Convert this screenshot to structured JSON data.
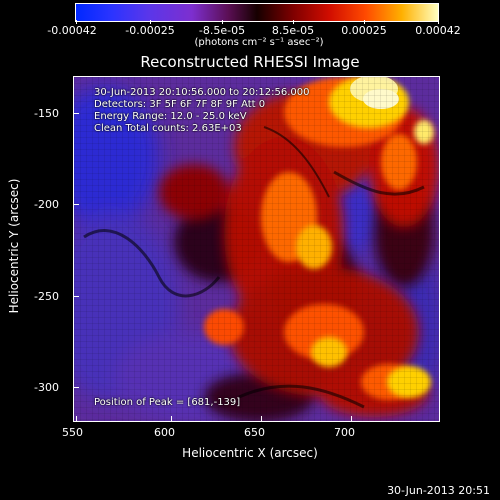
{
  "colorbar": {
    "tick_labels": [
      "-0.00042",
      "-0.00025",
      "-8.5e-05",
      "8.5e-05",
      "0.00025",
      "0.00042"
    ],
    "units": "(photons cm⁻² s⁻¹ asec⁻²)",
    "colors": {
      "low": "#0028ff",
      "mid_dark": "#160000",
      "high": "#ffffc0"
    }
  },
  "plot": {
    "title": "Reconstructed RHESSI Image",
    "x_label": "Heliocentric X (arcsec)",
    "y_label": "Heliocentric Y (arcsec)",
    "x_ticks": [
      "550",
      "600",
      "650",
      "700"
    ],
    "y_ticks": [
      "-150",
      "-200",
      "-250",
      "-300"
    ],
    "overlay": {
      "line1": "30-Jun-2013 20:10:56.000 to 20:12:56.000",
      "line2": "Detectors: 3F 5F 6F 7F 8F 9F  Att 0",
      "line3": "Energy Range: 12.0 - 25.0 keV",
      "line4": "Clean    Total counts: 2.63E+03",
      "peak": "Position of Peak = [681,-139]"
    }
  },
  "footer": {
    "timestamp": "30-Jun-2013 20:51"
  }
}
